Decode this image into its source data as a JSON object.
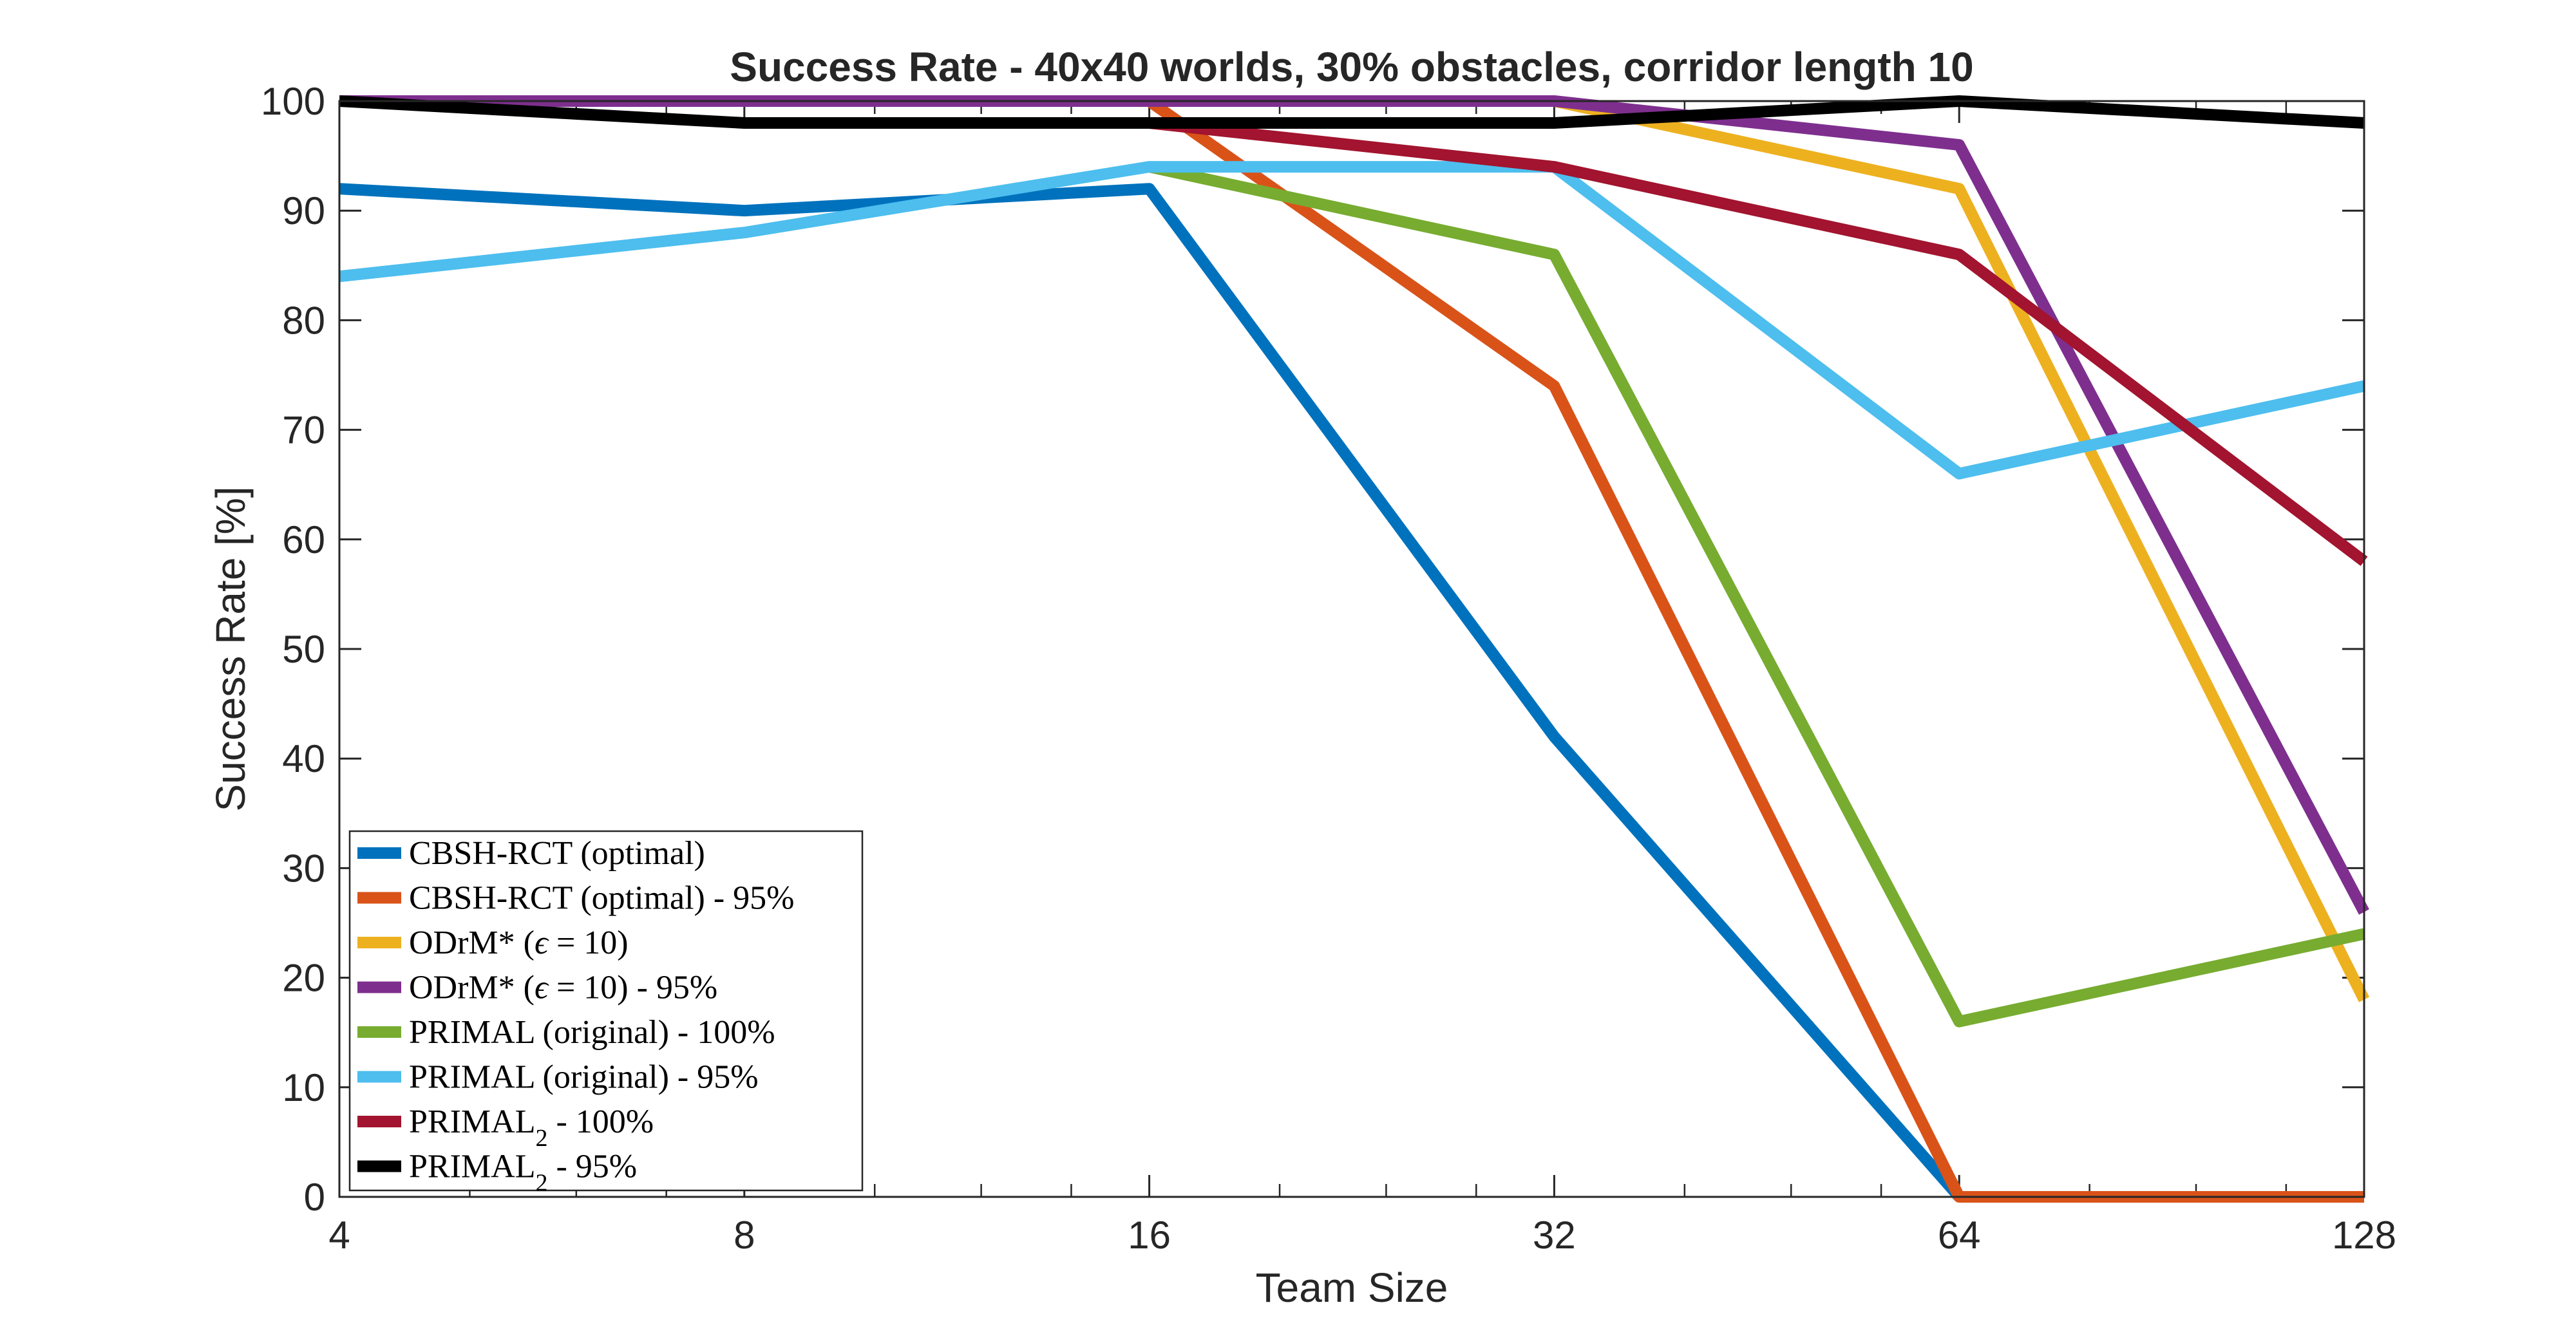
{
  "chart_data": {
    "type": "line",
    "title": "Success Rate - 40x40 worlds, 30% obstacles, corridor length 10",
    "xlabel": "Team Size",
    "ylabel": "Success Rate [%]",
    "x_scale": "log2",
    "x": [
      4,
      8,
      16,
      32,
      64,
      128
    ],
    "x_tick_labels": [
      "4",
      "8",
      "16",
      "32",
      "64",
      "128"
    ],
    "xlim": [
      4,
      128
    ],
    "ylim": [
      0,
      100
    ],
    "y_ticks": [
      0,
      10,
      20,
      30,
      40,
      50,
      60,
      70,
      80,
      90,
      100
    ],
    "grid": false,
    "legend_position": "bottom-left",
    "series": [
      {
        "name": "CBSH-RCT (optimal)",
        "legend_parts": [
          {
            "t": "CBSH-RCT (optimal)"
          }
        ],
        "color": "#0072BD",
        "values": [
          92,
          90,
          92,
          42,
          0,
          null
        ]
      },
      {
        "name": "CBSH-RCT (optimal) - 95%",
        "legend_parts": [
          {
            "t": "CBSH-RCT (optimal) - 95%"
          }
        ],
        "color": "#D95319",
        "values": [
          100,
          100,
          100,
          74,
          0,
          0
        ]
      },
      {
        "name": "ODrM* (ϵ = 10)",
        "legend_parts": [
          {
            "t": "ODrM* ("
          },
          {
            "t": "ϵ",
            "italic": true
          },
          {
            "t": " = 10)"
          }
        ],
        "color": "#EDB120",
        "values": [
          100,
          100,
          100,
          100,
          92,
          18
        ]
      },
      {
        "name": "ODrM* (ϵ = 10) - 95%",
        "legend_parts": [
          {
            "t": "ODrM* ("
          },
          {
            "t": "ϵ",
            "italic": true
          },
          {
            "t": " = 10) - 95%"
          }
        ],
        "color": "#7E2F8E",
        "values": [
          100,
          100,
          100,
          100,
          96,
          26
        ]
      },
      {
        "name": "PRIMAL (original) - 100%",
        "legend_parts": [
          {
            "t": "PRIMAL (original) - 100%"
          }
        ],
        "color": "#77AC30",
        "values": [
          null,
          null,
          94,
          86,
          16,
          24
        ]
      },
      {
        "name": "PRIMAL (original) - 95%",
        "legend_parts": [
          {
            "t": "PRIMAL (original) - 95%"
          }
        ],
        "color": "#4DBEEE",
        "values": [
          84,
          88,
          94,
          94,
          66,
          74
        ]
      },
      {
        "name": "PRIMAL2 - 100%",
        "legend_parts": [
          {
            "t": "PRIMAL"
          },
          {
            "t": "2",
            "sub": true
          },
          {
            "t": " - 100%"
          }
        ],
        "color": "#A2142F",
        "values": [
          null,
          null,
          98,
          94,
          86,
          58
        ]
      },
      {
        "name": "PRIMAL2 - 95%",
        "legend_parts": [
          {
            "t": "PRIMAL"
          },
          {
            "t": "2",
            "sub": true
          },
          {
            "t": " - 95%"
          }
        ],
        "color": "#000000",
        "values": [
          100,
          98,
          98,
          98,
          100,
          98
        ]
      }
    ]
  }
}
